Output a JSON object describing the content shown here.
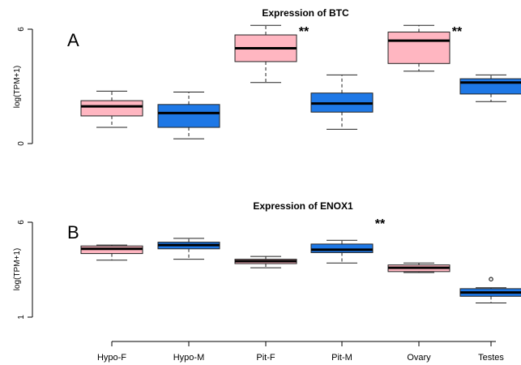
{
  "colors": {
    "female": "#ffb6c1",
    "male": "#1e78e6",
    "outline": "#222222"
  },
  "x_categories": [
    "Hypo-F",
    "Hypo-M",
    "Pit-F",
    "Pit-M",
    "Ovary",
    "Testes"
  ],
  "chart_data": [
    {
      "type": "boxplot",
      "panel_label": "A",
      "title": "Expression of BTC",
      "ylabel": "log(TPM+1)",
      "ylim": [
        0,
        6.2
      ],
      "yticks": [
        0,
        6
      ],
      "categories": [
        "Hypo-F",
        "Hypo-M",
        "Pit-F",
        "Pit-M",
        "Ovary",
        "Testes"
      ],
      "boxes": [
        {
          "category": "Hypo-F",
          "min": 0.85,
          "q1": 1.45,
          "median": 1.95,
          "q3": 2.25,
          "max": 2.75,
          "color": "#ffb6c1"
        },
        {
          "category": "Hypo-M",
          "min": 0.25,
          "q1": 0.85,
          "median": 1.6,
          "q3": 2.05,
          "max": 2.7,
          "color": "#1e78e6"
        },
        {
          "category": "Pit-F",
          "min": 3.2,
          "q1": 4.3,
          "median": 5.0,
          "q3": 5.7,
          "max": 6.2,
          "color": "#ffb6c1"
        },
        {
          "category": "Pit-M",
          "min": 0.75,
          "q1": 1.65,
          "median": 2.1,
          "q3": 2.65,
          "max": 3.6,
          "color": "#1e78e6"
        },
        {
          "category": "Ovary",
          "min": 3.8,
          "q1": 4.2,
          "median": 5.4,
          "q3": 5.85,
          "max": 6.2,
          "color": "#ffb6c1"
        },
        {
          "category": "Testes",
          "min": 2.2,
          "q1": 2.6,
          "median": 3.2,
          "q3": 3.4,
          "max": 3.6,
          "color": "#1e78e6"
        }
      ],
      "annotations": [
        {
          "category": "Pit-F",
          "text": "**"
        },
        {
          "category": "Ovary",
          "text": "**"
        }
      ]
    },
    {
      "type": "boxplot",
      "panel_label": "B",
      "title": "Expression of ENOX1",
      "ylabel": "log(TPM+1)",
      "ylim": [
        1,
        6.2
      ],
      "yticks": [
        1,
        6
      ],
      "categories": [
        "Hypo-F",
        "Hypo-M",
        "Pit-F",
        "Pit-M",
        "Ovary",
        "Testes"
      ],
      "boxes": [
        {
          "category": "Hypo-F",
          "min": 4.0,
          "q1": 4.35,
          "median": 4.6,
          "q3": 4.75,
          "max": 4.8,
          "color": "#ffb6c1",
          "outliers": []
        },
        {
          "category": "Hypo-M",
          "min": 4.05,
          "q1": 4.6,
          "median": 4.8,
          "q3": 4.95,
          "max": 5.15,
          "color": "#1e78e6",
          "outliers": []
        },
        {
          "category": "Pit-F",
          "min": 3.6,
          "q1": 3.82,
          "median": 3.95,
          "q3": 4.05,
          "max": 4.2,
          "color": "#ffb6c1",
          "outliers": []
        },
        {
          "category": "Pit-M",
          "min": 3.85,
          "q1": 4.4,
          "median": 4.55,
          "q3": 4.85,
          "max": 5.05,
          "color": "#1e78e6",
          "outliers": []
        },
        {
          "category": "Ovary",
          "min": 3.35,
          "q1": 3.4,
          "median": 3.6,
          "q3": 3.75,
          "max": 3.85,
          "color": "#ffb6c1",
          "outliers": []
        },
        {
          "category": "Testes",
          "min": 1.75,
          "q1": 2.1,
          "median": 2.3,
          "q3": 2.5,
          "max": 2.55,
          "color": "#1e78e6",
          "outliers": [
            3.0
          ]
        }
      ],
      "annotations": [
        {
          "category": "Pit-M",
          "text": "**"
        },
        {
          "category": "Testes",
          "text": "**"
        }
      ]
    }
  ]
}
